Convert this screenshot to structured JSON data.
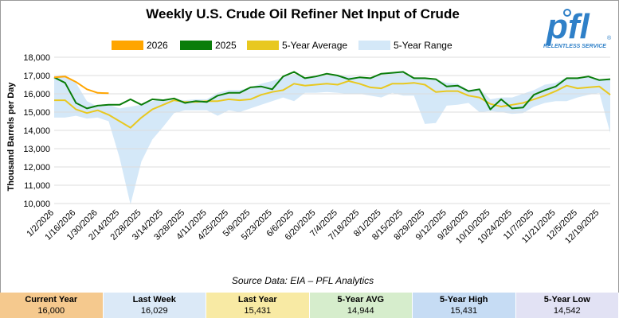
{
  "title": "Weekly U.S. Crude Oil Refiner Net Input of Crude",
  "logo": {
    "text": "pfl",
    "tagline": "RELENTLESS SERVICE",
    "trademark": "®"
  },
  "source": "Source Data: EIA – PFL Analytics",
  "colors": {
    "s2026": "#ffa500",
    "s2025": "#0a7d0a",
    "avg": "#e8c820",
    "range": "#d4e8f8",
    "grid": "#dcdcdc",
    "logo": "#2f80c8"
  },
  "legend": [
    {
      "label": "2026",
      "color": "#ffa500"
    },
    {
      "label": "2025",
      "color": "#0a7d0a"
    },
    {
      "label": "5-Year Average",
      "color": "#e8c820"
    },
    {
      "label": "5-Year Range",
      "color": "#d4e8f8"
    }
  ],
  "chart_data": {
    "type": "line",
    "title": "Weekly U.S. Crude Oil Refiner Net Input of Crude",
    "ylabel": "Thousand Barrels per Day",
    "ylim": [
      10000,
      18000
    ],
    "yticks": [
      "10,000",
      "11,000",
      "12,000",
      "13,000",
      "14,000",
      "15,000",
      "16,000",
      "17,000",
      "18,000"
    ],
    "grid": true,
    "legend_position": "top",
    "x_tick_labels": [
      "1/2/2026",
      "1/16/2026",
      "1/30/2026",
      "2/14/2025",
      "2/28/2025",
      "3/14/2025",
      "3/28/2025",
      "4/11/2025",
      "4/25/2025",
      "5/9/2025",
      "5/23/2025",
      "6/6/2025",
      "6/20/2025",
      "7/4/2025",
      "7/18/2025",
      "8/1/2025",
      "8/15/2025",
      "8/29/2025",
      "9/12/2025",
      "9/26/2025",
      "10/10/2025",
      "10/24/2025",
      "11/7/2025",
      "11/21/2025",
      "12/5/2025",
      "12/19/2025"
    ],
    "series": [
      {
        "name": "2026",
        "values": [
          16900,
          16950,
          16650,
          16250,
          16050,
          16029
        ]
      },
      {
        "name": "2025",
        "values": [
          16900,
          16600,
          15500,
          15200,
          15350,
          15400,
          15400,
          15700,
          15400,
          15700,
          15650,
          15750,
          15500,
          15600,
          15550,
          15900,
          16050,
          16050,
          16350,
          16400,
          16250,
          16950,
          17200,
          16850,
          16950,
          17100,
          17000,
          16800,
          16900,
          16850,
          17100,
          17150,
          17200,
          16850,
          16850,
          16800,
          16400,
          16450,
          16150,
          16250,
          15150,
          15700,
          15200,
          15250,
          15950,
          16200,
          16400,
          16850,
          16850,
          16950,
          16750,
          16800
        ]
      },
      {
        "name": "5-Year Average",
        "values": [
          15650,
          15650,
          15150,
          14950,
          15100,
          14850,
          14500,
          14150,
          14700,
          15150,
          15400,
          15650,
          15550,
          15550,
          15600,
          15600,
          15700,
          15650,
          15700,
          15950,
          16100,
          16200,
          16550,
          16450,
          16500,
          16550,
          16500,
          16700,
          16550,
          16350,
          16300,
          16550,
          16550,
          16600,
          16500,
          16100,
          16150,
          16150,
          15900,
          15800,
          15450,
          15300,
          15400,
          15500,
          15700,
          15900,
          16150,
          16450,
          16300,
          16350,
          16400,
          15950
        ]
      }
    ],
    "range_min": [
      14700,
      14700,
      14800,
      14650,
      14700,
      14500,
      12500,
      9950,
      12300,
      13500,
      14200,
      14950,
      15100,
      15100,
      15100,
      14800,
      15100,
      15000,
      15200,
      15400,
      15600,
      15800,
      15600,
      16050,
      16050,
      16100,
      16050,
      16000,
      16000,
      15900,
      15800,
      16050,
      15900,
      15900,
      14350,
      14400,
      15350,
      15400,
      15500,
      15000,
      15050,
      15000,
      14900,
      14950,
      15300,
      15500,
      15600,
      15600,
      15800,
      15950,
      16050,
      13850
    ],
    "range_max": [
      16900,
      16950,
      16600,
      15600,
      15300,
      15400,
      15200,
      15300,
      15400,
      15600,
      15700,
      15700,
      15650,
      15700,
      15700,
      16050,
      16200,
      16200,
      16350,
      16550,
      16700,
      16900,
      17100,
      16900,
      17000,
      17100,
      17000,
      16950,
      16900,
      16850,
      17100,
      17150,
      17200,
      16900,
      16850,
      16800,
      16600,
      16550,
      16200,
      16300,
      15700,
      15800,
      15800,
      16000,
      16200,
      16500,
      16600,
      16900,
      16850,
      16950,
      16800,
      16850
    ]
  },
  "stats": [
    {
      "label": "Current Year",
      "value": "16,000",
      "bg": "#f5c98e"
    },
    {
      "label": "Last Week",
      "value": "16,029",
      "bg": "#dbe9f7"
    },
    {
      "label": "Last Year",
      "value": "15,431",
      "bg": "#f8eaa4"
    },
    {
      "label": "5-Year AVG",
      "value": "14,944",
      "bg": "#d6edcc"
    },
    {
      "label": "5-Year High",
      "value": "15,431",
      "bg": "#c6dcf4"
    },
    {
      "label": "5-Year Low",
      "value": "14,542",
      "bg": "#e2e2f4"
    }
  ]
}
